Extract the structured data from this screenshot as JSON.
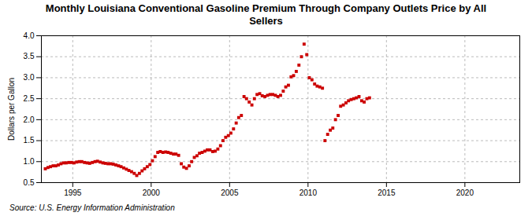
{
  "chart_data": {
    "type": "scatter",
    "title": "Monthly Louisiana Conventional Gasoline Premium Through Company Outlets Price by All\nSellers",
    "ylabel": "Dollars per Gallon",
    "source": "Source: U.S. Energy Information Administration",
    "color": "#cc0000",
    "marker": "square",
    "grid": true,
    "xlim": [
      1993.0,
      2023.5
    ],
    "xticks": [
      1995,
      2000,
      2005,
      2010,
      2015,
      2020
    ],
    "ylim": [
      0.5,
      4.0
    ],
    "yticks": [
      0.5,
      {
        "value": 1.0,
        "label": "1.0"
      },
      1.5,
      {
        "value": 2.0,
        "label": "2.0"
      },
      2.5,
      {
        "value": 3.0,
        "label": "3.0"
      },
      3.5,
      {
        "value": 4.0,
        "label": "4.0"
      }
    ],
    "x": [
      1993.25,
      1993.42,
      1993.58,
      1993.75,
      1993.92,
      1994.08,
      1994.25,
      1994.42,
      1994.58,
      1994.75,
      1994.92,
      1995.08,
      1995.25,
      1995.42,
      1995.58,
      1995.75,
      1995.92,
      1996.08,
      1996.25,
      1996.42,
      1996.58,
      1996.75,
      1996.92,
      1997.08,
      1997.25,
      1997.42,
      1997.58,
      1997.75,
      1997.92,
      1998.08,
      1998.25,
      1998.42,
      1998.58,
      1998.75,
      1998.92,
      1999.08,
      1999.25,
      1999.42,
      1999.58,
      1999.75,
      1999.92,
      2000.08,
      2000.25,
      2000.42,
      2000.58,
      2000.75,
      2000.92,
      2001.08,
      2001.25,
      2001.42,
      2001.58,
      2001.75,
      2001.92,
      2002.08,
      2002.25,
      2002.42,
      2002.58,
      2002.75,
      2002.92,
      2003.08,
      2003.25,
      2003.42,
      2003.58,
      2003.75,
      2003.92,
      2004.08,
      2004.25,
      2004.42,
      2004.58,
      2004.75,
      2004.92,
      2005.08,
      2005.25,
      2005.42,
      2005.58,
      2005.75,
      2005.92,
      2006.08,
      2006.25,
      2006.42,
      2006.58,
      2006.75,
      2006.92,
      2007.08,
      2007.25,
      2007.42,
      2007.58,
      2007.75,
      2007.92,
      2008.08,
      2008.25,
      2008.42,
      2008.58,
      2008.75,
      2008.92,
      2009.08,
      2009.25,
      2009.42,
      2009.58,
      2009.75,
      2009.92,
      2010.08,
      2010.25,
      2010.42,
      2010.58,
      2010.75,
      2010.92,
      2011.08,
      2011.25,
      2011.42,
      2011.58,
      2011.75,
      2011.92,
      2012.08,
      2012.25,
      2012.42,
      2012.58,
      2012.75,
      2012.92,
      2013.08,
      2013.25,
      2013.42,
      2013.58,
      2013.75,
      2013.92
    ],
    "values": [
      0.83,
      0.86,
      0.88,
      0.9,
      0.9,
      0.92,
      0.95,
      0.97,
      0.97,
      0.98,
      0.98,
      0.97,
      0.99,
      1.0,
      1.0,
      0.98,
      0.97,
      0.96,
      0.98,
      1.0,
      1.01,
      0.99,
      0.97,
      0.96,
      0.95,
      0.95,
      0.94,
      0.92,
      0.9,
      0.88,
      0.85,
      0.82,
      0.79,
      0.76,
      0.72,
      0.67,
      0.72,
      0.78,
      0.83,
      0.88,
      0.93,
      1.02,
      1.12,
      1.22,
      1.24,
      1.22,
      1.23,
      1.22,
      1.2,
      1.18,
      1.18,
      1.15,
      0.95,
      0.87,
      0.84,
      0.9,
      1.0,
      1.1,
      1.14,
      1.2,
      1.22,
      1.25,
      1.28,
      1.28,
      1.24,
      1.25,
      1.3,
      1.38,
      1.5,
      1.58,
      1.62,
      1.68,
      1.78,
      1.92,
      2.05,
      2.1,
      2.55,
      2.5,
      2.42,
      2.35,
      2.5,
      2.6,
      2.62,
      2.57,
      2.55,
      2.58,
      2.6,
      2.6,
      2.58,
      2.55,
      2.58,
      2.68,
      2.78,
      2.82,
      3.02,
      3.05,
      3.15,
      3.3,
      3.5,
      3.8,
      3.55,
      3.0,
      2.95,
      2.85,
      2.8,
      2.78,
      2.75,
      1.5,
      1.65,
      1.75,
      1.8,
      2.0,
      2.1,
      2.32,
      2.35,
      2.4,
      2.45,
      2.48,
      2.5,
      2.52,
      2.55,
      2.45,
      2.42,
      2.5,
      2.52
    ]
  }
}
